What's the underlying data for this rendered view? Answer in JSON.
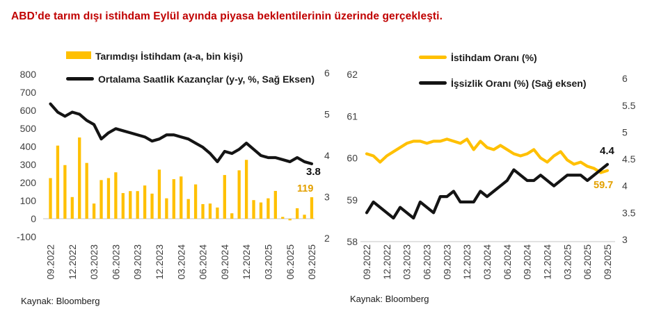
{
  "title": "ABD’de tarım dışı istihdam Eylül ayında piyasa beklentilerinin üzerinde gerçekleşti.",
  "colors": {
    "title_red": "#c00000",
    "series_yellow": "#ffc000",
    "series_black": "#141414",
    "label_orange": "#e3a000",
    "axis_text": "#3f3f3f",
    "gridline": "#d9d9d9"
  },
  "chart_data": [
    {
      "type": "bar",
      "subtype": "bar+line-dual-axis",
      "categories": [
        "09.2022",
        "10.2022",
        "11.2022",
        "12.2022",
        "01.2023",
        "02.2023",
        "03.2023",
        "04.2023",
        "05.2023",
        "06.2023",
        "07.2023",
        "08.2023",
        "09.2023",
        "10.2023",
        "11.2023",
        "12.2023",
        "01.2024",
        "02.2024",
        "03.2024",
        "04.2024",
        "05.2024",
        "06.2024",
        "07.2024",
        "08.2024",
        "09.2024",
        "10.2024",
        "11.2024",
        "12.2024",
        "01.2025",
        "02.2025",
        "03.2025",
        "04.2025",
        "05.2025",
        "06.2025",
        "07.2025",
        "08.2025",
        "09.2025"
      ],
      "x_tick_labels": [
        "09.2022",
        "12.2022",
        "03.2023",
        "06.2023",
        "09.2023",
        "12.2023",
        "03.2024",
        "06.2024",
        "09.2024",
        "12.2024",
        "03.2025",
        "06.2025",
        "09.2025"
      ],
      "series": [
        {
          "name": "Tarımdışı İstihdam (a-a, bin kişi)",
          "type": "bar",
          "axis": "left",
          "color": "#ffc000",
          "values": [
            225,
            405,
            297,
            120,
            450,
            309,
            84,
            214,
            225,
            257,
            142,
            153,
            153,
            184,
            139,
            272,
            113,
            219,
            234,
            109,
            190,
            81,
            84,
            62,
            242,
            30,
            268,
            326,
            103,
            90,
            113,
            154,
            10,
            -9,
            58,
            22,
            119
          ]
        },
        {
          "name": "Ortalama Saatlik Kazançlar (y-y, %, Sağ Eksen)",
          "type": "line",
          "axis": "right",
          "color": "#141414",
          "values": [
            5.25,
            5.05,
            4.95,
            5.05,
            5.0,
            4.85,
            4.75,
            4.4,
            4.55,
            4.65,
            4.6,
            4.55,
            4.5,
            4.45,
            4.35,
            4.4,
            4.5,
            4.5,
            4.45,
            4.4,
            4.3,
            4.2,
            4.05,
            3.85,
            4.1,
            4.05,
            4.15,
            4.3,
            4.15,
            4.0,
            3.95,
            3.95,
            3.9,
            3.85,
            3.95,
            3.85,
            3.8
          ]
        }
      ],
      "left_axis": {
        "ticks": [
          800,
          700,
          600,
          500,
          400,
          300,
          200,
          100,
          0,
          -100
        ],
        "range": [
          -100,
          800
        ]
      },
      "right_axis": {
        "ticks": [
          6,
          5,
          4,
          3,
          2
        ],
        "range": [
          2,
          6
        ]
      },
      "legend": [
        {
          "label": "Tarımdışı İstihdam (a-a, bin kişi)",
          "swatch": "bar-yellow"
        },
        {
          "label": "Ortalama Saatlik Kazançlar (y-y, %, Sağ Eksen)",
          "swatch": "line-black"
        }
      ],
      "annotations": [
        {
          "label": "3.8",
          "series": "Ortalama Saatlik Kazançlar",
          "color": "#111111"
        },
        {
          "label": "119",
          "series": "Tarımdışı İstihdam",
          "color": "#e3a000"
        }
      ],
      "source": "Kaynak: Bloomberg",
      "grid": "baseline-only",
      "legend_position": "top"
    },
    {
      "type": "line",
      "subtype": "two-lines-dual-axis",
      "categories": [
        "09.2022",
        "10.2022",
        "11.2022",
        "12.2022",
        "01.2023",
        "02.2023",
        "03.2023",
        "04.2023",
        "05.2023",
        "06.2023",
        "07.2023",
        "08.2023",
        "09.2023",
        "10.2023",
        "11.2023",
        "12.2023",
        "01.2024",
        "02.2024",
        "03.2024",
        "04.2024",
        "05.2024",
        "06.2024",
        "07.2024",
        "08.2024",
        "09.2024",
        "10.2024",
        "11.2024",
        "12.2024",
        "01.2025",
        "02.2025",
        "03.2025",
        "04.2025",
        "05.2025",
        "06.2025",
        "07.2025",
        "08.2025",
        "09.2025"
      ],
      "x_tick_labels": [
        "09.2022",
        "12.2022",
        "03.2023",
        "06.2023",
        "09.2023",
        "12.2023",
        "03.2024",
        "06.2024",
        "09.2024",
        "12.2024",
        "03.2025",
        "06.2025",
        "09.2025"
      ],
      "series": [
        {
          "name": "İstihdam Oranı (%)",
          "type": "line",
          "axis": "left",
          "color": "#ffc000",
          "values": [
            60.1,
            60.05,
            59.9,
            60.05,
            60.15,
            60.25,
            60.35,
            60.4,
            60.4,
            60.35,
            60.4,
            60.4,
            60.45,
            60.4,
            60.35,
            60.45,
            60.2,
            60.4,
            60.25,
            60.2,
            60.3,
            60.2,
            60.1,
            60.05,
            60.1,
            60.2,
            60.0,
            59.9,
            60.05,
            60.15,
            59.95,
            59.85,
            59.9,
            59.8,
            59.75,
            59.65,
            59.7
          ]
        },
        {
          "name": "İşsizlik Oranı (%) (Sağ eksen)",
          "type": "line",
          "axis": "right",
          "color": "#141414",
          "values": [
            3.5,
            3.7,
            3.6,
            3.5,
            3.4,
            3.6,
            3.5,
            3.4,
            3.7,
            3.6,
            3.5,
            3.8,
            3.8,
            3.9,
            3.7,
            3.7,
            3.7,
            3.9,
            3.8,
            3.9,
            4.0,
            4.1,
            4.3,
            4.2,
            4.1,
            4.1,
            4.2,
            4.1,
            4.0,
            4.1,
            4.2,
            4.2,
            4.2,
            4.1,
            4.2,
            4.3,
            4.4
          ]
        }
      ],
      "left_axis": {
        "ticks": [
          62,
          61,
          60,
          59,
          58
        ],
        "range": [
          58,
          62
        ]
      },
      "right_axis": {
        "ticks": [
          6,
          5.5,
          5,
          4.5,
          4,
          3.5,
          3
        ],
        "range": [
          3,
          6
        ]
      },
      "legend": [
        {
          "label": "İstihdam Oranı (%)",
          "swatch": "line-yellow"
        },
        {
          "label": "İşsizlik Oranı (%) (Sağ eksen)",
          "swatch": "line-black"
        }
      ],
      "annotations": [
        {
          "label": "4.4",
          "series": "İşsizlik Oranı",
          "color": "#111111"
        },
        {
          "label": "59.7",
          "series": "İstihdam Oranı",
          "color": "#e3a000"
        }
      ],
      "source": "Kaynak: Bloomberg",
      "grid": "baseline-only",
      "legend_position": "top"
    }
  ]
}
